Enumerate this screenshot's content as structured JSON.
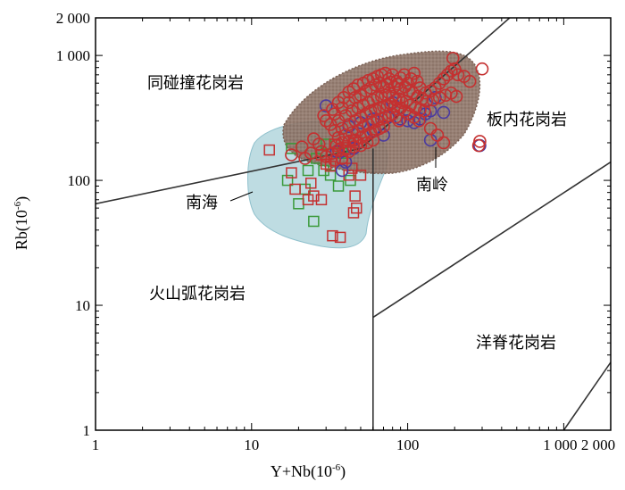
{
  "chart_data": {
    "type": "scatter",
    "x_axis": {
      "scale": "log",
      "range": [
        1,
        2000
      ],
      "label": "Y+Nb(10",
      "label_sup": "-6",
      "label_end": ")",
      "ticks": [
        {
          "v": 1,
          "t": "1"
        },
        {
          "v": 10,
          "t": "10"
        },
        {
          "v": 100,
          "t": "100"
        },
        {
          "v": 1000,
          "t": "1 000"
        },
        {
          "v": 2000,
          "t": "2 000"
        }
      ]
    },
    "y_axis": {
      "scale": "log",
      "range": [
        1,
        2000
      ],
      "label": "Rb(10",
      "label_sup": "-6",
      "label_end": ")",
      "ticks": [
        {
          "v": 1,
          "t": "1"
        },
        {
          "v": 10,
          "t": "10"
        },
        {
          "v": 100,
          "t": "100"
        },
        {
          "v": 1000,
          "t": "1 000"
        },
        {
          "v": 2000,
          "t": "2 000"
        }
      ]
    },
    "region_labels": {
      "syn_collision": "同碰撞花岗岩",
      "within_plate": "板内花岗岩",
      "volcanic_arc": "火山弧花岗岩",
      "ocean_ridge": "洋脊花岗岩"
    },
    "field_labels": {
      "nanhai": "南海",
      "nanling": "南岭"
    },
    "boundaries": [
      [
        [
          1,
          65
        ],
        [
          50,
          180
        ],
        [
          450,
          2000
        ]
      ],
      [
        [
          60,
          180
        ],
        [
          60,
          1
        ]
      ],
      [
        [
          60,
          8
        ],
        [
          2000,
          140
        ]
      ],
      [
        [
          1000,
          1
        ],
        [
          2000,
          3.5
        ]
      ]
    ],
    "colors": {
      "red": "#c43030",
      "blue": "#4a3aa0",
      "green": "#3a9a3a",
      "nanling_field": "#8c7265",
      "nanhai_field": "#a8d0d8"
    },
    "series": {
      "red_circles": [
        [
          29,
          330
        ],
        [
          33,
          370
        ],
        [
          36,
          420
        ],
        [
          39,
          460
        ],
        [
          42,
          510
        ],
        [
          45,
          540
        ],
        [
          48,
          580
        ],
        [
          52,
          600
        ],
        [
          56,
          630
        ],
        [
          60,
          650
        ],
        [
          64,
          680
        ],
        [
          68,
          700
        ],
        [
          72,
          720
        ],
        [
          76,
          650
        ],
        [
          80,
          700
        ],
        [
          85,
          620
        ],
        [
          90,
          660
        ],
        [
          95,
          700
        ],
        [
          100,
          600
        ],
        [
          105,
          650
        ],
        [
          110,
          720
        ],
        [
          115,
          620
        ],
        [
          120,
          550
        ],
        [
          130,
          500
        ],
        [
          140,
          520
        ],
        [
          150,
          550
        ],
        [
          160,
          600
        ],
        [
          170,
          650
        ],
        [
          180,
          700
        ],
        [
          190,
          750
        ],
        [
          200,
          780
        ],
        [
          210,
          700
        ],
        [
          230,
          680
        ],
        [
          250,
          620
        ],
        [
          300,
          780
        ],
        [
          195,
          950
        ],
        [
          30,
          300
        ],
        [
          34,
          340
        ],
        [
          38,
          380
        ],
        [
          42,
          420
        ],
        [
          46,
          460
        ],
        [
          50,
          480
        ],
        [
          54,
          520
        ],
        [
          58,
          550
        ],
        [
          62,
          580
        ],
        [
          66,
          600
        ],
        [
          70,
          560
        ],
        [
          74,
          590
        ],
        [
          78,
          610
        ],
        [
          82,
          560
        ],
        [
          86,
          590
        ],
        [
          90,
          540
        ],
        [
          96,
          560
        ],
        [
          102,
          520
        ],
        [
          108,
          500
        ],
        [
          116,
          470
        ],
        [
          124,
          450
        ],
        [
          132,
          430
        ],
        [
          145,
          440
        ],
        [
          160,
          460
        ],
        [
          175,
          480
        ],
        [
          190,
          500
        ],
        [
          205,
          470
        ],
        [
          32,
          280
        ],
        [
          36,
          300
        ],
        [
          40,
          330
        ],
        [
          44,
          360
        ],
        [
          48,
          380
        ],
        [
          52,
          400
        ],
        [
          56,
          420
        ],
        [
          60,
          440
        ],
        [
          64,
          460
        ],
        [
          68,
          470
        ],
        [
          72,
          480
        ],
        [
          76,
          500
        ],
        [
          80,
          470
        ],
        [
          84,
          440
        ],
        [
          88,
          450
        ],
        [
          92,
          420
        ],
        [
          98,
          430
        ],
        [
          104,
          400
        ],
        [
          112,
          380
        ],
        [
          120,
          370
        ],
        [
          128,
          360
        ],
        [
          34,
          250
        ],
        [
          38,
          260
        ],
        [
          42,
          280
        ],
        [
          46,
          300
        ],
        [
          50,
          320
        ],
        [
          54,
          340
        ],
        [
          58,
          360
        ],
        [
          62,
          370
        ],
        [
          66,
          380
        ],
        [
          70,
          390
        ],
        [
          74,
          400
        ],
        [
          78,
          410
        ],
        [
          82,
          390
        ],
        [
          86,
          370
        ],
        [
          90,
          380
        ],
        [
          96,
          360
        ],
        [
          102,
          340
        ],
        [
          110,
          320
        ],
        [
          118,
          300
        ],
        [
          36,
          220
        ],
        [
          40,
          230
        ],
        [
          44,
          240
        ],
        [
          48,
          250
        ],
        [
          52,
          270
        ],
        [
          56,
          280
        ],
        [
          60,
          290
        ],
        [
          64,
          300
        ],
        [
          68,
          310
        ],
        [
          72,
          320
        ],
        [
          76,
          330
        ],
        [
          80,
          340
        ],
        [
          84,
          320
        ],
        [
          88,
          300
        ],
        [
          38,
          200
        ],
        [
          42,
          205
        ],
        [
          46,
          210
        ],
        [
          50,
          220
        ],
        [
          54,
          230
        ],
        [
          58,
          240
        ],
        [
          62,
          250
        ],
        [
          66,
          260
        ],
        [
          70,
          270
        ],
        [
          33,
          165
        ],
        [
          36,
          175
        ],
        [
          40,
          180
        ],
        [
          45,
          185
        ],
        [
          50,
          190
        ],
        [
          55,
          200
        ],
        [
          60,
          210
        ],
        [
          30,
          155
        ],
        [
          34,
          145
        ],
        [
          38,
          150
        ],
        [
          27,
          195
        ],
        [
          25,
          215
        ],
        [
          24,
          165
        ],
        [
          22,
          150
        ],
        [
          21,
          185
        ],
        [
          18,
          160
        ],
        [
          28,
          170
        ],
        [
          35,
          190
        ],
        [
          42,
          170
        ],
        [
          155,
          230
        ],
        [
          170,
          200
        ],
        [
          140,
          260
        ],
        [
          285,
          190
        ],
        [
          290,
          205
        ]
      ],
      "blue_circles": [
        [
          30,
          395
        ],
        [
          42,
          270
        ],
        [
          50,
          290
        ],
        [
          60,
          310
        ],
        [
          75,
          320
        ],
        [
          90,
          310
        ],
        [
          100,
          300
        ],
        [
          110,
          290
        ],
        [
          120,
          310
        ],
        [
          130,
          340
        ],
        [
          140,
          360
        ],
        [
          170,
          350
        ],
        [
          150,
          460
        ],
        [
          60,
          250
        ],
        [
          70,
          230
        ],
        [
          80,
          420
        ],
        [
          45,
          180
        ],
        [
          40,
          140
        ],
        [
          38,
          120
        ],
        [
          290,
          190
        ],
        [
          140,
          210
        ],
        [
          35,
          170
        ]
      ],
      "red_squares": [
        [
          13,
          175
        ],
        [
          18,
          115
        ],
        [
          19,
          85
        ],
        [
          23,
          70
        ],
        [
          24,
          95
        ],
        [
          25,
          75
        ],
        [
          28,
          70
        ],
        [
          33,
          36
        ],
        [
          37,
          35
        ],
        [
          45,
          55
        ],
        [
          47,
          60
        ],
        [
          46,
          75
        ],
        [
          42,
          110
        ],
        [
          50,
          110
        ],
        [
          38,
          150
        ],
        [
          40,
          175
        ],
        [
          45,
          210
        ],
        [
          48,
          200
        ],
        [
          36,
          170
        ],
        [
          32,
          130
        ],
        [
          30,
          135
        ],
        [
          34,
          195
        ],
        [
          44,
          125
        ],
        [
          28,
          160
        ]
      ],
      "green_squares": [
        [
          18,
          180
        ],
        [
          17,
          100
        ],
        [
          20,
          65
        ],
        [
          22,
          85
        ],
        [
          23,
          120
        ],
        [
          25,
          47
        ],
        [
          29,
          120
        ],
        [
          32,
          110
        ],
        [
          36,
          90
        ],
        [
          38,
          165
        ],
        [
          43,
          100
        ],
        [
          30,
          195
        ],
        [
          26,
          150
        ]
      ]
    }
  }
}
